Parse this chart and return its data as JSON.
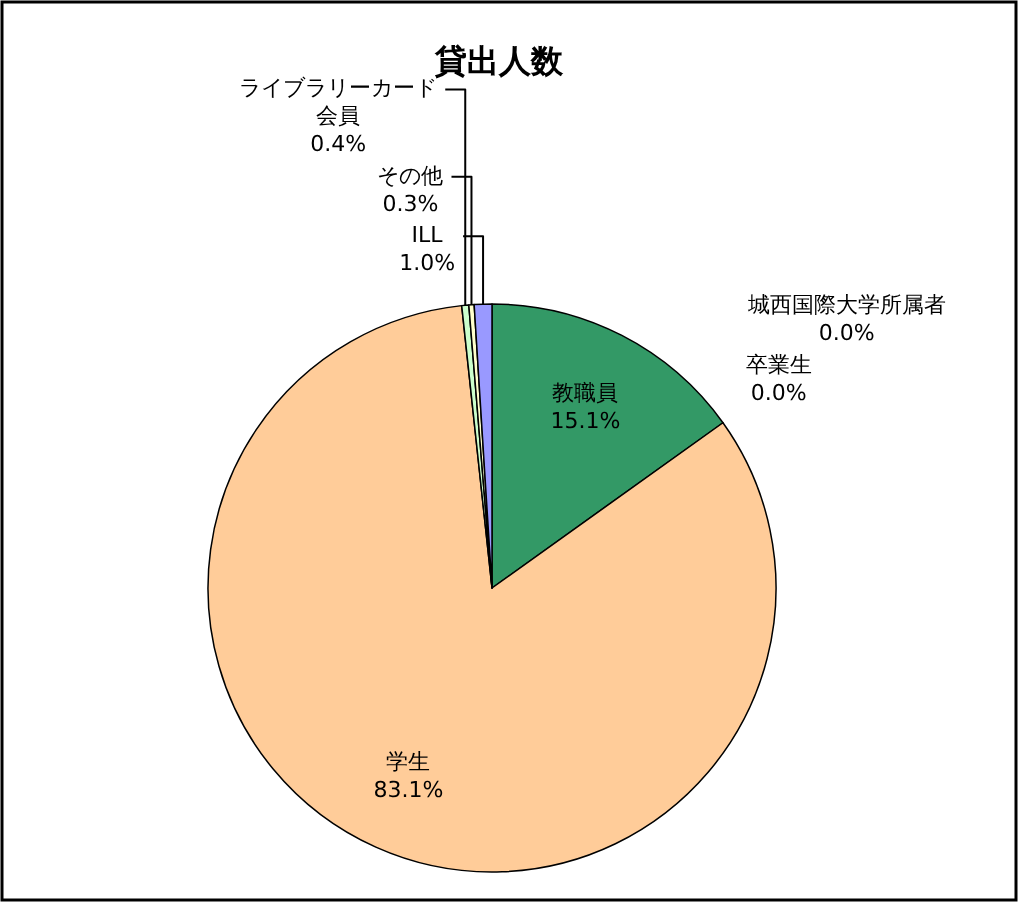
{
  "chart_data": {
    "type": "pie",
    "title": "貸出人数",
    "categories": [
      "教職員",
      "卒業生",
      "城西国際大学所属者",
      "学生",
      "ライブラリーカード会員",
      "その他",
      "ILL"
    ],
    "values": [
      15.1,
      0.0,
      0.0,
      83.1,
      0.4,
      0.3,
      1.0
    ],
    "value_labels": [
      "15.1%",
      "0.0%",
      "0.0%",
      "83.1%",
      "0.4%",
      "0.3%",
      "1.0%"
    ],
    "colors": [
      "#339966",
      "#ff8080",
      "#ffff99",
      "#ffcc99",
      "#ccffcc",
      "#ffffcc",
      "#9999ff"
    ]
  }
}
